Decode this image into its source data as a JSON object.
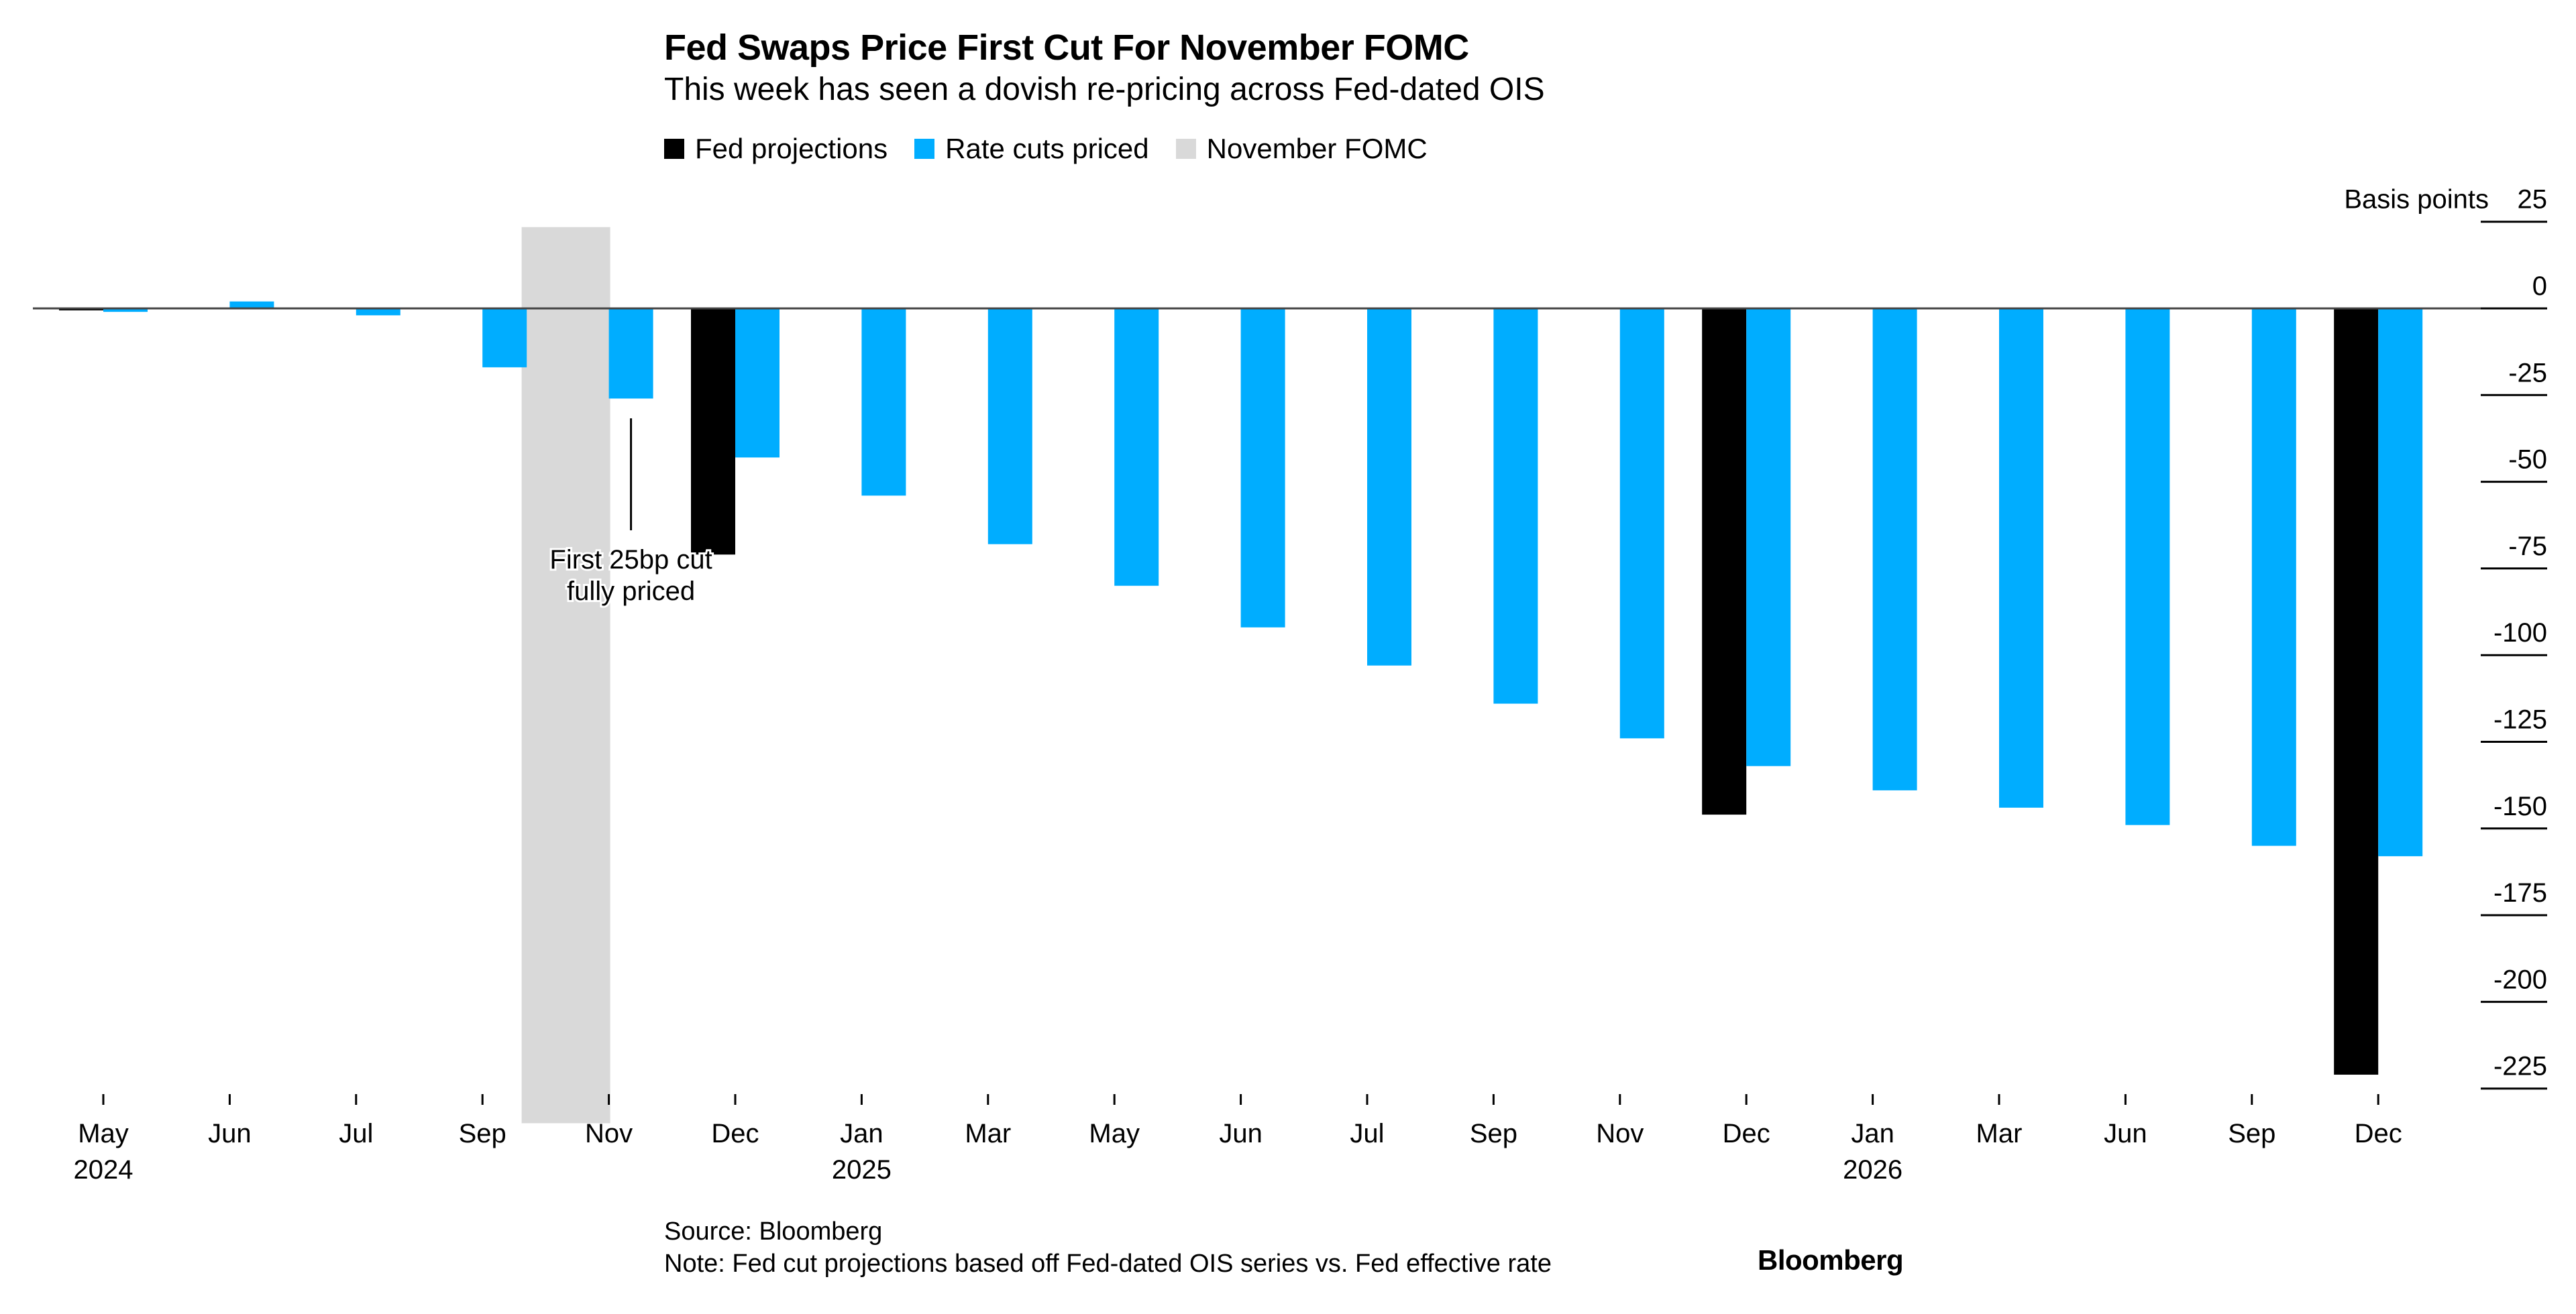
{
  "chart_data": {
    "type": "bar",
    "title": "Fed Swaps Price First Cut For November FOMC",
    "subtitle": "This week has seen a dovish re-pricing across Fed-dated OIS",
    "ylabel": "Basis points",
    "ylim": [
      -235,
      25
    ],
    "yticks": [
      25,
      0,
      -25,
      -50,
      -75,
      -100,
      -125,
      -150,
      -175,
      -200,
      -225
    ],
    "legend_position": "top-left",
    "legend": [
      {
        "name": "Fed projections",
        "color": "#000000"
      },
      {
        "name": "Rate cuts priced",
        "color": "#00adff"
      },
      {
        "name": "November FOMC",
        "color": "#d9d9d9"
      }
    ],
    "categories": [
      "May",
      "Jun",
      "Jul",
      "Sep",
      "Nov",
      "Dec",
      "Jan",
      "Mar",
      "May",
      "Jun",
      "Jul",
      "Sep",
      "Nov",
      "Dec",
      "Jan",
      "Mar",
      "Jun",
      "Sep",
      "Dec"
    ],
    "year_labels": {
      "0": "2024",
      "6": "2025",
      "14": "2026"
    },
    "series": [
      {
        "name": "Fed projections",
        "color": "#000000",
        "values": [
          0,
          null,
          null,
          null,
          null,
          -71,
          null,
          null,
          null,
          null,
          null,
          null,
          null,
          -146,
          null,
          null,
          null,
          null,
          -221
        ]
      },
      {
        "name": "Rate cuts priced",
        "color": "#00adff",
        "values": [
          -1,
          2,
          -2,
          -17,
          -26,
          -43,
          -54,
          -68,
          -80,
          -92,
          -103,
          -114,
          -124,
          -132,
          -139,
          -144,
          -149,
          -155,
          -158
        ]
      }
    ],
    "highlight": {
      "label": "November FOMC",
      "category_index": 4,
      "color": "#d9d9d9"
    },
    "annotation": {
      "line1": "First 25bp cut",
      "line2": "fully priced",
      "category_index": 4
    },
    "source": "Source: Bloomberg",
    "note": "Note: Fed cut projections based off Fed-dated OIS series vs. Fed effective rate",
    "brand": "Bloomberg"
  }
}
